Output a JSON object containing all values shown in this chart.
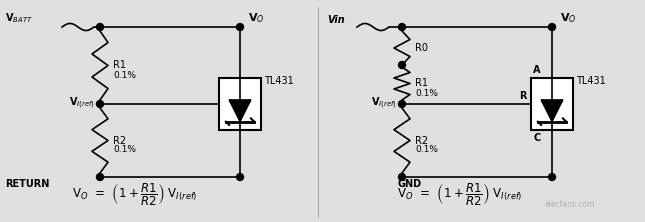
{
  "bg_color": "#e8e8e8",
  "line_color": "#000000",
  "fig_width": 6.45,
  "fig_height": 2.22,
  "dpi": 100,
  "c1": {
    "vbatt": "V$_{BATT}$",
    "vo": "V$_O$",
    "return_lbl": "RETURN",
    "viref": "V$_{I(ref)}$",
    "tl431": "TL431",
    "formula": "V$_O$  =  $\\left(1 + \\dfrac{R1}{R2}\\right)$ V$_{I(ref)}$"
  },
  "c2": {
    "vin": "Vin",
    "vo": "V$_O$",
    "gnd": "GND",
    "viref": "V$_{I(ref)}$",
    "r0": "R0",
    "r_lbl": "R",
    "c_lbl": "C",
    "a_lbl": "A",
    "tl431": "TL431",
    "formula": "V$_O$  =  $\\left(1 + \\dfrac{R1}{R2}\\right)$ V$_{I(ref)}$"
  }
}
